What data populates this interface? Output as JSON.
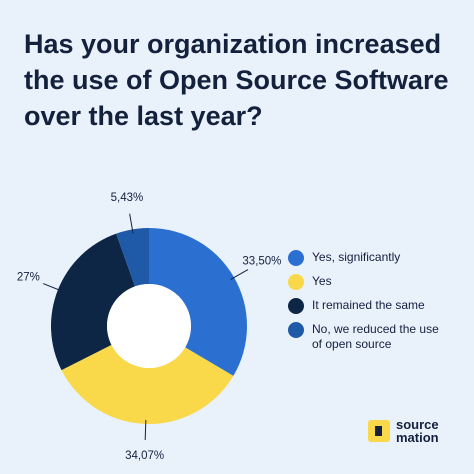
{
  "chart_data": {
    "type": "pie",
    "title": "Has your organization increased the use of Open Source Software over the last year?",
    "categories": [
      "Yes, significantly",
      "Yes",
      "It remained the same",
      "No, we reduced the use of open source"
    ],
    "values": [
      33.5,
      34.07,
      27,
      5.43
    ],
    "value_labels": [
      "33,50%",
      "34,07%",
      "27%",
      "5,43%"
    ],
    "colors": [
      "#2b6fd1",
      "#f9d84a",
      "#0d2645",
      "#1f5aa8"
    ]
  },
  "logo": {
    "line1": "source",
    "line2": "mation"
  }
}
